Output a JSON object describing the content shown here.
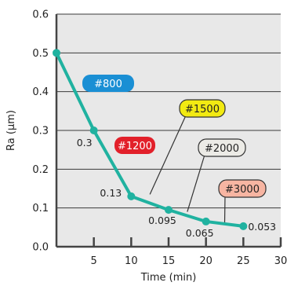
{
  "chart_data": {
    "type": "line",
    "title": "",
    "xlabel": "Time (min)",
    "ylabel": "Ra (μm)",
    "xlim": [
      0,
      30
    ],
    "ylim": [
      0,
      0.6
    ],
    "xticks": [
      5,
      10,
      15,
      20,
      25,
      30
    ],
    "yticks": [
      0.0,
      0.1,
      0.2,
      0.3,
      0.4,
      0.5,
      0.6
    ],
    "xtick_labels": [
      "5",
      "10",
      "15",
      "20",
      "25",
      "30"
    ],
    "ytick_labels": [
      "0.0",
      "0.1",
      "0.2",
      "0.3",
      "0.4",
      "0.5",
      "0.6"
    ],
    "grid": "horizontal",
    "series": [
      {
        "color": "#20b2a0",
        "x": [
          0,
          5,
          10,
          15,
          20,
          25
        ],
        "y": [
          0.5,
          0.3,
          0.13,
          0.095,
          0.065,
          0.053
        ],
        "point_labels": [
          "",
          "0.3",
          "0.13",
          "0.095",
          "0.065",
          "0.053"
        ]
      }
    ],
    "badges": [
      {
        "text": "#800",
        "fill": "#1a8fd4",
        "text_color": "#ffffff",
        "anchor_x": 2.5,
        "anchor_y": 0.4
      },
      {
        "text": "#1200",
        "fill": "#e2202a",
        "text_color": "#ffffff",
        "anchor_x": 7.5,
        "anchor_y": 0.215
      },
      {
        "text": "#1500",
        "fill": "#f2ea12",
        "text_color": "#222222",
        "anchor_x": 12.5,
        "anchor_y": 0.135
      },
      {
        "text": "#2000",
        "fill": "#ecebe6",
        "text_color": "#222222",
        "anchor_x": 17.5,
        "anchor_y": 0.09
      },
      {
        "text": "#3000",
        "fill": "#f7b5a2",
        "text_color": "#222222",
        "anchor_x": 22.5,
        "anchor_y": 0.06
      }
    ],
    "colors": {
      "background": "#ffffff",
      "plot_background": "#e8e8e8",
      "grid": "#3a3a3a",
      "axis": "#444444"
    }
  }
}
